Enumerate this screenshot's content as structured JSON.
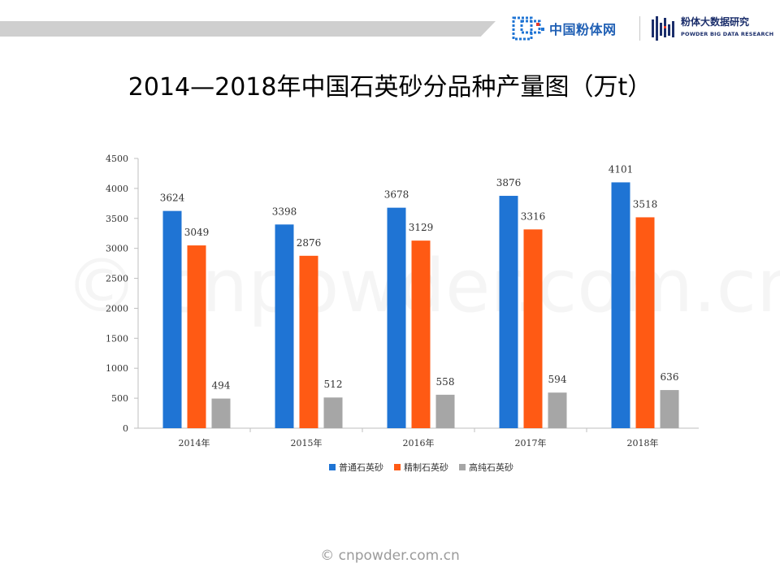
{
  "header": {
    "logo_left_text": "中国粉体网",
    "logo_right_text_cn": "粉体大数据研究",
    "logo_right_text_en": "POWDER BIG DATA RESEARCH"
  },
  "footer": {
    "text": "© cnpowder.com.cn"
  },
  "watermark": {
    "text": "© cnpowder.com.cn"
  },
  "chart_data": {
    "type": "bar",
    "title": "2014—2018年中国石英砂分品种产量图（万t）",
    "categories": [
      "2014年",
      "2015年",
      "2016年",
      "2017年",
      "2018年"
    ],
    "series": [
      {
        "name": "普通石英砂",
        "color": "#1f74d4",
        "values": [
          3624,
          3398,
          3678,
          3876,
          4101
        ]
      },
      {
        "name": "精制石英砂",
        "color": "#ff5a14",
        "values": [
          3049,
          2876,
          3129,
          3316,
          3518
        ]
      },
      {
        "name": "高纯石英砂",
        "color": "#a6a6a6",
        "values": [
          494,
          512,
          558,
          594,
          636
        ]
      }
    ],
    "ylim": [
      0,
      4500
    ],
    "yticks": [
      0,
      500,
      1000,
      1500,
      2000,
      2500,
      3000,
      3500,
      4000,
      4500
    ],
    "grid": false,
    "legend_position": "bottom"
  }
}
